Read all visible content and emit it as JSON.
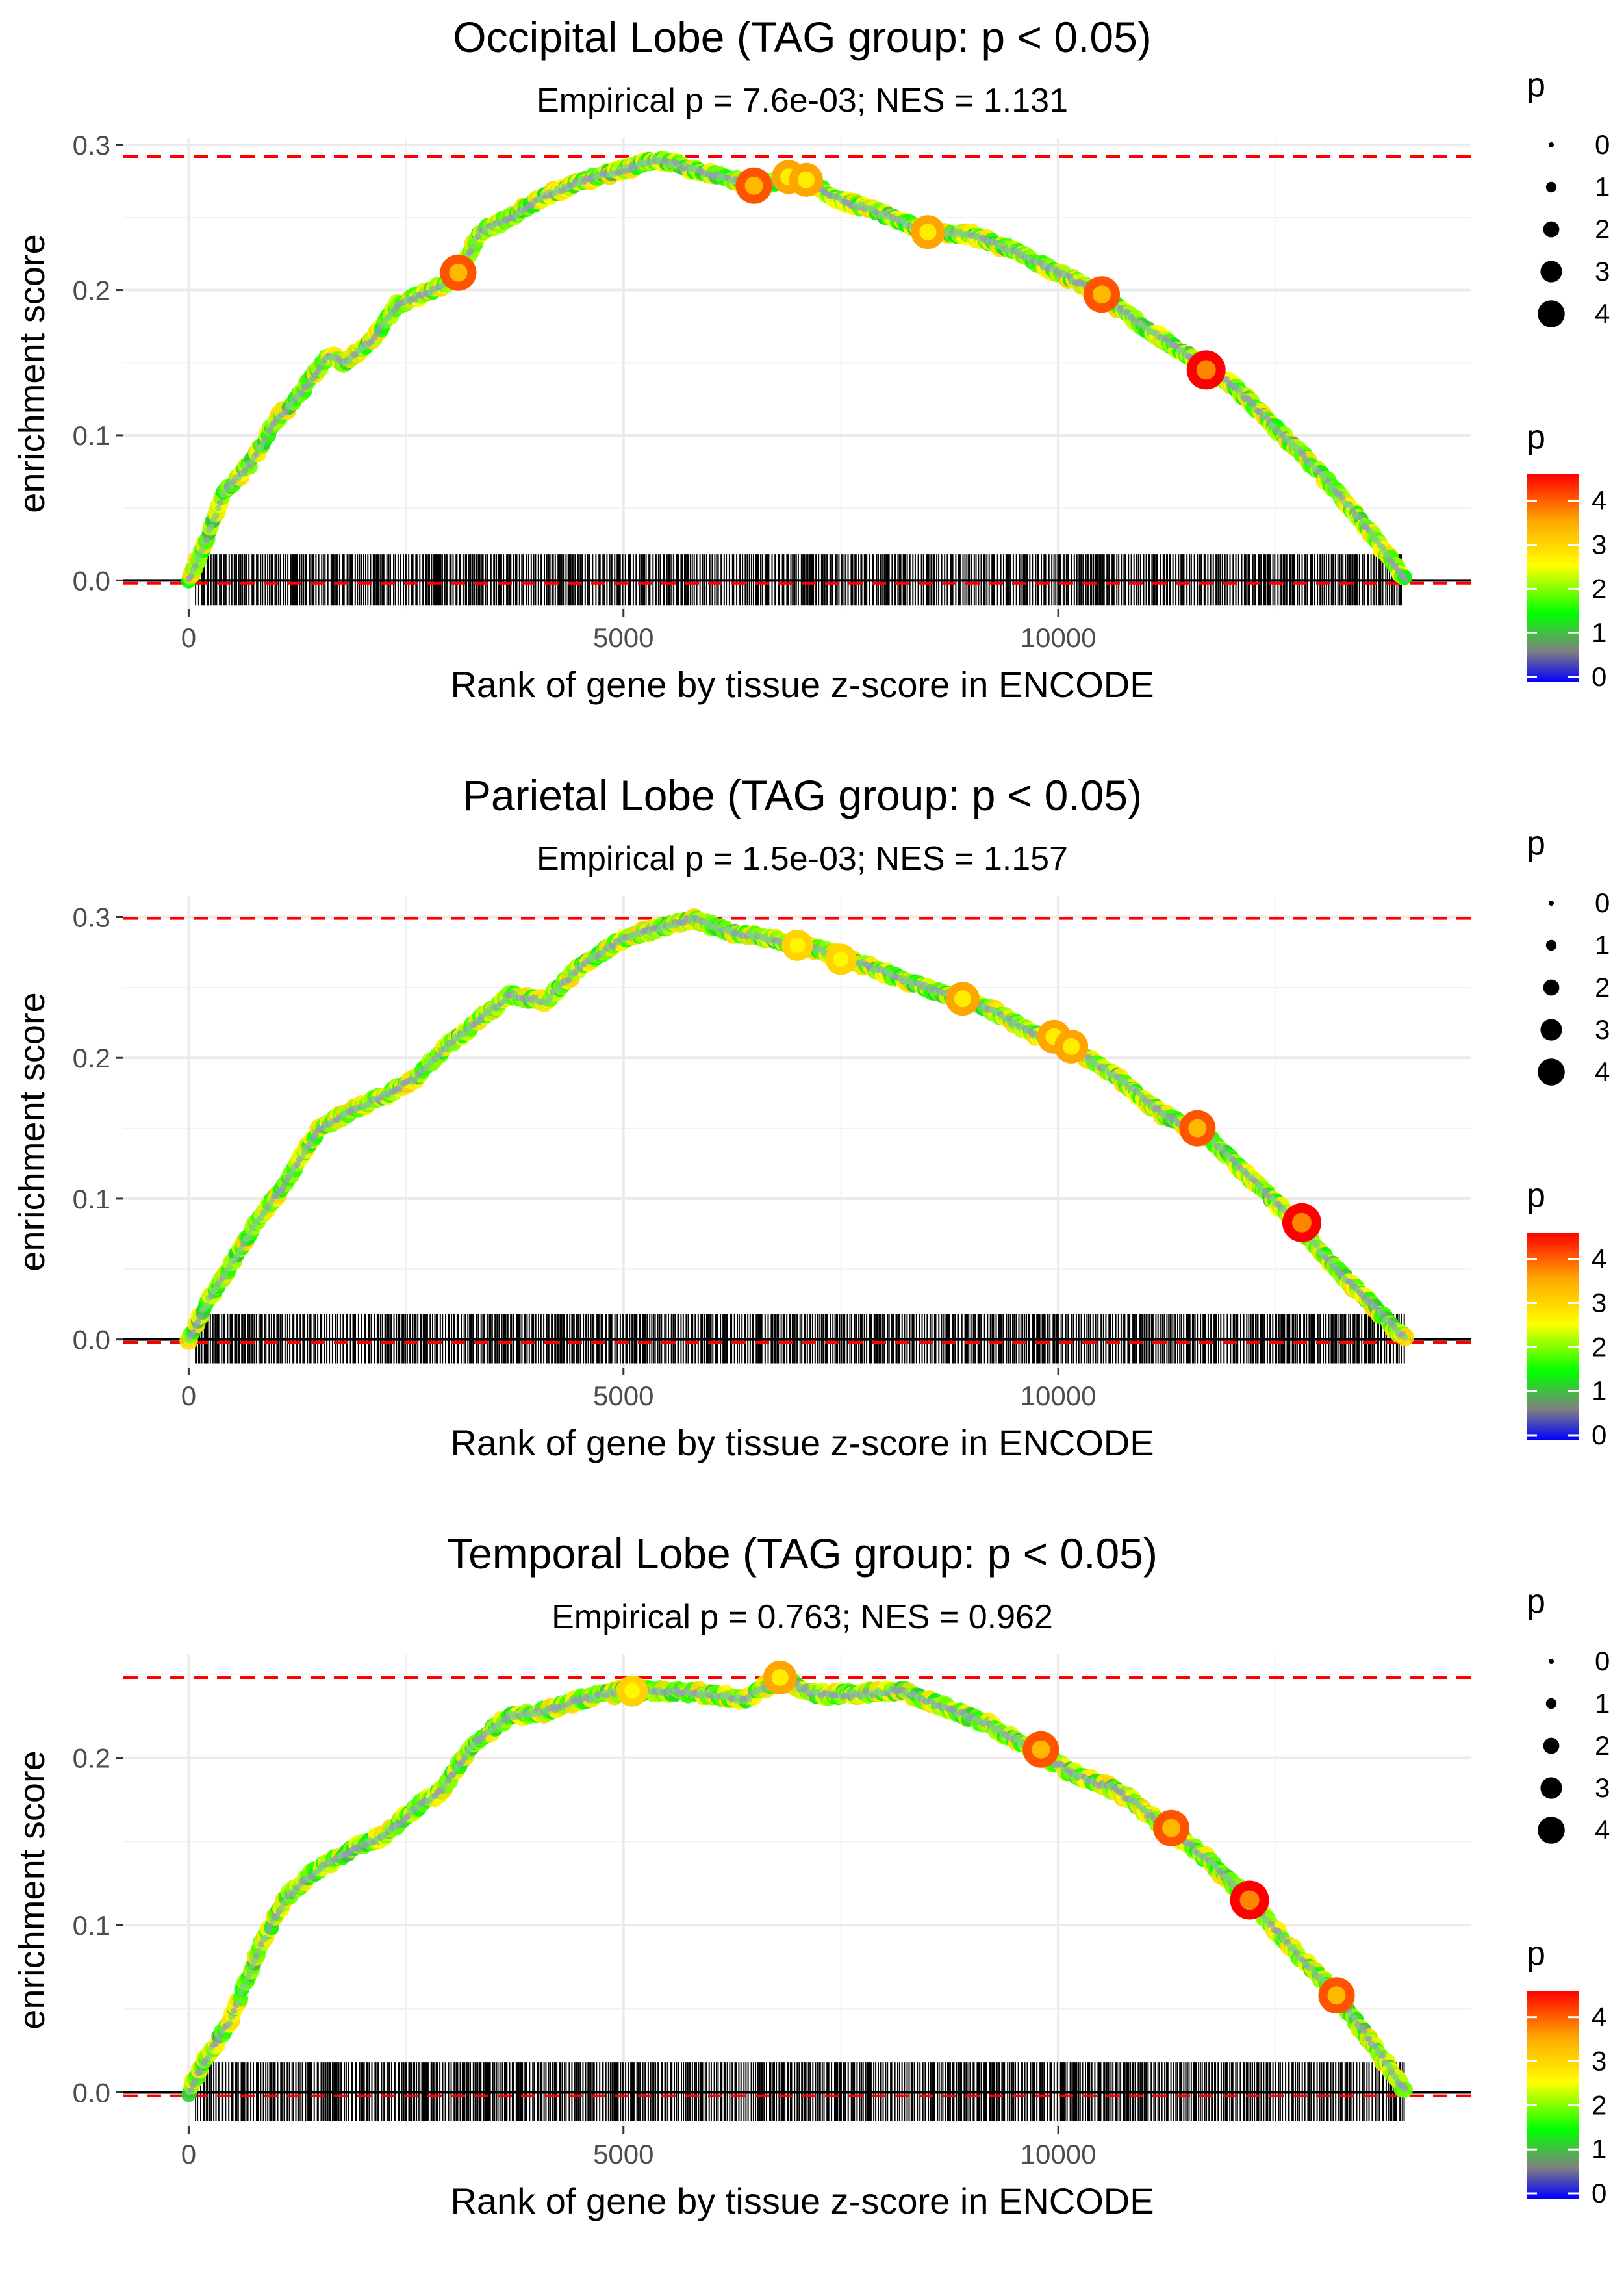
{
  "chart_data": [
    {
      "type": "line",
      "title": "Occipital Lobe (TAG group: p < 0.05)",
      "subtitle": "Empirical p = 7.6e-03; NES = 1.131",
      "xlabel": "Rank of gene by tissue z-score in ENCODE",
      "ylabel": "enrichment score",
      "xlim": [
        -750,
        14750
      ],
      "ylim": [
        -0.02,
        0.305
      ],
      "x_ticks": [
        0,
        5000,
        10000
      ],
      "x_tick_labels": [
        "0",
        "5000",
        "10000"
      ],
      "y_ticks": [
        0.0,
        0.1,
        0.2,
        0.3
      ],
      "y_tick_labels": [
        "0.0",
        "0.1",
        "0.2",
        "0.3"
      ],
      "max_es": 0.292,
      "min_es": -0.002,
      "series": [
        {
          "name": "running enrichment score",
          "x": [
            0,
            150,
            400,
            700,
            1000,
            1300,
            1600,
            1800,
            2100,
            2400,
            2800,
            3100,
            3350,
            3700,
            4100,
            4500,
            5000,
            5400,
            6000,
            6500,
            7000,
            7500,
            8000,
            8500,
            9000,
            9500,
            10000,
            10500,
            11000,
            11500,
            12000,
            12500,
            13000,
            13500,
            14000
          ],
          "y": [
            0.0,
            0.02,
            0.06,
            0.08,
            0.11,
            0.13,
            0.155,
            0.15,
            0.165,
            0.19,
            0.2,
            0.21,
            0.24,
            0.25,
            0.265,
            0.275,
            0.283,
            0.29,
            0.28,
            0.272,
            0.278,
            0.262,
            0.252,
            0.24,
            0.238,
            0.227,
            0.212,
            0.197,
            0.174,
            0.155,
            0.135,
            0.105,
            0.075,
            0.04,
            0.0
          ]
        }
      ],
      "highlights": [
        {
          "x": 3100,
          "y": 0.212,
          "p": 4
        },
        {
          "x": 6500,
          "y": 0.272,
          "p": 4
        },
        {
          "x": 6900,
          "y": 0.278,
          "p": 3.5
        },
        {
          "x": 7100,
          "y": 0.276,
          "p": 3.5
        },
        {
          "x": 8500,
          "y": 0.24,
          "p": 3.5
        },
        {
          "x": 10500,
          "y": 0.197,
          "p": 4
        },
        {
          "x": 11700,
          "y": 0.145,
          "p": 4.5
        }
      ],
      "gene_ranks": {
        "start": 80,
        "end": 13950
      },
      "legend_size": {
        "title": "p",
        "labels": [
          "0",
          "1",
          "2",
          "3",
          "4"
        ]
      },
      "legend_color": {
        "title": "p",
        "labels": [
          "4",
          "3",
          "2",
          "1",
          "0"
        ],
        "colors": [
          "#ff0000",
          "#ffa500",
          "#ffff00",
          "#00ff00",
          "#808080",
          "#0000ff"
        ]
      }
    },
    {
      "type": "line",
      "title": "Parietal Lobe (TAG group: p < 0.05)",
      "subtitle": "Empirical p = 1.5e-03; NES = 1.157",
      "xlabel": "Rank of gene by tissue z-score in ENCODE",
      "ylabel": "enrichment score",
      "xlim": [
        -750,
        14750
      ],
      "ylim": [
        -0.02,
        0.315
      ],
      "x_ticks": [
        0,
        5000,
        10000
      ],
      "x_tick_labels": [
        "0",
        "5000",
        "10000"
      ],
      "y_ticks": [
        0.0,
        0.1,
        0.2,
        0.3
      ],
      "y_tick_labels": [
        "0.0",
        "0.1",
        "0.2",
        "0.3"
      ],
      "max_es": 0.299,
      "min_es": -0.002,
      "series": [
        {
          "name": "running enrichment score",
          "x": [
            0,
            200,
            500,
            800,
            1100,
            1500,
            1800,
            2200,
            2600,
            3000,
            3300,
            3700,
            4100,
            4500,
            5000,
            5400,
            5800,
            6200,
            6700,
            7200,
            7700,
            8200,
            8700,
            9200,
            9700,
            10200,
            10700,
            11200,
            11700,
            12200,
            12700,
            13200,
            13600,
            14000
          ],
          "y": [
            0.0,
            0.025,
            0.055,
            0.085,
            0.11,
            0.15,
            0.16,
            0.172,
            0.185,
            0.21,
            0.225,
            0.245,
            0.24,
            0.265,
            0.285,
            0.292,
            0.299,
            0.29,
            0.284,
            0.278,
            0.268,
            0.256,
            0.245,
            0.235,
            0.218,
            0.205,
            0.185,
            0.16,
            0.145,
            0.115,
            0.085,
            0.05,
            0.025,
            0.0
          ]
        }
      ],
      "highlights": [
        {
          "x": 7000,
          "y": 0.28,
          "p": 3
        },
        {
          "x": 7500,
          "y": 0.27,
          "p": 3
        },
        {
          "x": 8900,
          "y": 0.242,
          "p": 3.5
        },
        {
          "x": 9950,
          "y": 0.215,
          "p": 3.5
        },
        {
          "x": 10150,
          "y": 0.208,
          "p": 3.5
        },
        {
          "x": 11600,
          "y": 0.15,
          "p": 4
        },
        {
          "x": 12800,
          "y": 0.083,
          "p": 4.5
        }
      ],
      "gene_ranks": {
        "start": 80,
        "end": 13980
      },
      "legend_size": {
        "title": "p",
        "labels": [
          "0",
          "1",
          "2",
          "3",
          "4"
        ]
      },
      "legend_color": {
        "title": "p",
        "labels": [
          "4",
          "3",
          "2",
          "1",
          "0"
        ],
        "colors": [
          "#ff0000",
          "#ffa500",
          "#ffff00",
          "#00ff00",
          "#808080",
          "#0000ff"
        ]
      }
    },
    {
      "type": "line",
      "title": "Temporal Lobe (TAG group: p < 0.05)",
      "subtitle": "Empirical p = 0.763; NES = 0.962",
      "xlabel": "Rank of gene by tissue z-score in ENCODE",
      "ylabel": "enrichment score",
      "xlim": [
        -750,
        14750
      ],
      "ylim": [
        -0.02,
        0.262
      ],
      "x_ticks": [
        0,
        5000,
        10000
      ],
      "x_tick_labels": [
        "0",
        "5000",
        "10000"
      ],
      "y_ticks": [
        0.0,
        0.1,
        0.2
      ],
      "y_tick_labels": [
        "0.0",
        "0.1",
        "0.2"
      ],
      "max_es": 0.248,
      "min_es": -0.002,
      "series": [
        {
          "name": "running enrichment score",
          "x": [
            0,
            200,
            500,
            800,
            1100,
            1400,
            1700,
            2000,
            2300,
            2600,
            2900,
            3300,
            3700,
            4100,
            4500,
            5000,
            5500,
            6000,
            6400,
            6800,
            7200,
            7700,
            8200,
            8700,
            9200,
            9700,
            10200,
            10700,
            11200,
            11700,
            12200,
            12700,
            13200,
            13600,
            14000
          ],
          "y": [
            0.0,
            0.02,
            0.045,
            0.085,
            0.115,
            0.13,
            0.14,
            0.148,
            0.155,
            0.17,
            0.18,
            0.21,
            0.225,
            0.228,
            0.235,
            0.24,
            0.24,
            0.238,
            0.235,
            0.248,
            0.238,
            0.238,
            0.24,
            0.23,
            0.22,
            0.205,
            0.19,
            0.18,
            0.16,
            0.14,
            0.115,
            0.085,
            0.058,
            0.03,
            0.0
          ]
        }
      ],
      "highlights": [
        {
          "x": 5100,
          "y": 0.24,
          "p": 3
        },
        {
          "x": 6800,
          "y": 0.248,
          "p": 3.5
        },
        {
          "x": 9800,
          "y": 0.205,
          "p": 4
        },
        {
          "x": 11300,
          "y": 0.158,
          "p": 4
        },
        {
          "x": 12200,
          "y": 0.115,
          "p": 4.5
        },
        {
          "x": 13200,
          "y": 0.058,
          "p": 4
        }
      ],
      "gene_ranks": {
        "start": 80,
        "end": 13980
      },
      "legend_size": {
        "title": "p",
        "labels": [
          "0",
          "1",
          "2",
          "3",
          "4"
        ]
      },
      "legend_color": {
        "title": "p",
        "labels": [
          "4",
          "3",
          "2",
          "1",
          "0"
        ],
        "colors": [
          "#ff0000",
          "#ffa500",
          "#ffff00",
          "#00ff00",
          "#808080",
          "#0000ff"
        ]
      }
    }
  ]
}
